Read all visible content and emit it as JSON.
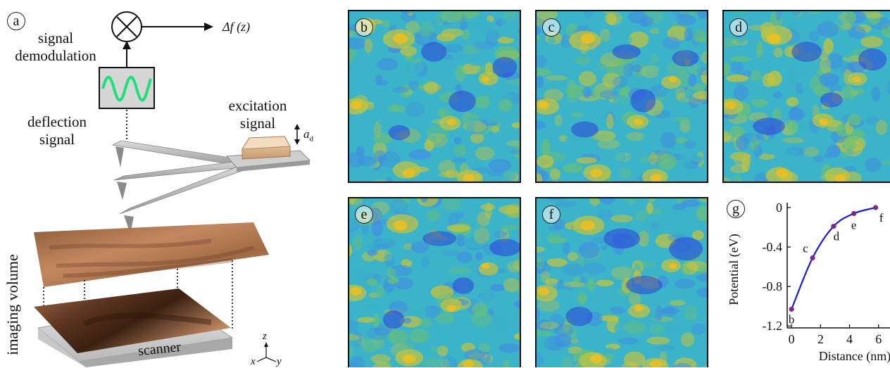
{
  "panel_a": {
    "letter": "a",
    "signal_demodulation": "signal demodulation",
    "deflection_signal": "deflection signal",
    "excitation_signal": "excitation signal",
    "amplitude_symbol": "a",
    "amplitude_subscript": "d",
    "output_label": "Δf (z)",
    "imaging_volume": "imaging volume",
    "scanner": "scanner",
    "axis_z": "z",
    "axis_x": "x",
    "axis_y": "y"
  },
  "maps": [
    {
      "letter": "b",
      "seed": 1
    },
    {
      "letter": "c",
      "seed": 2
    },
    {
      "letter": "d",
      "seed": 3
    },
    {
      "letter": "e",
      "seed": 4
    },
    {
      "letter": "f",
      "seed": 5
    }
  ],
  "colormap": [
    "#2a3fd8",
    "#3f8fe0",
    "#3bb3c8",
    "#6ac07a",
    "#c8c43a",
    "#f0c020"
  ],
  "chart_letter": "g",
  "chart_data": {
    "type": "line",
    "xlabel": "Distance (nm)",
    "ylabel": "Potential (eV)",
    "xlim": [
      -0.3,
      6.5
    ],
    "ylim": [
      -1.22,
      0.05
    ],
    "xticks": [
      0,
      2,
      4,
      6
    ],
    "xtick_labels": [
      "0",
      "2",
      "4",
      "6"
    ],
    "yticks": [
      0,
      -0.4,
      -0.8,
      -1.2
    ],
    "ytick_labels": [
      "0",
      "-0.4",
      "-0.8",
      "-1.2"
    ],
    "points": [
      {
        "label": "b",
        "x": 0.0,
        "y": -1.03
      },
      {
        "label": "c",
        "x": 1.45,
        "y": -0.51
      },
      {
        "label": "d",
        "x": 2.9,
        "y": -0.19
      },
      {
        "label": "e",
        "x": 4.3,
        "y": -0.06
      },
      {
        "label": "f",
        "x": 5.8,
        "y": 0.0
      }
    ],
    "line_color": "#1a1ad8",
    "marker_color": "#7a2a8a"
  }
}
